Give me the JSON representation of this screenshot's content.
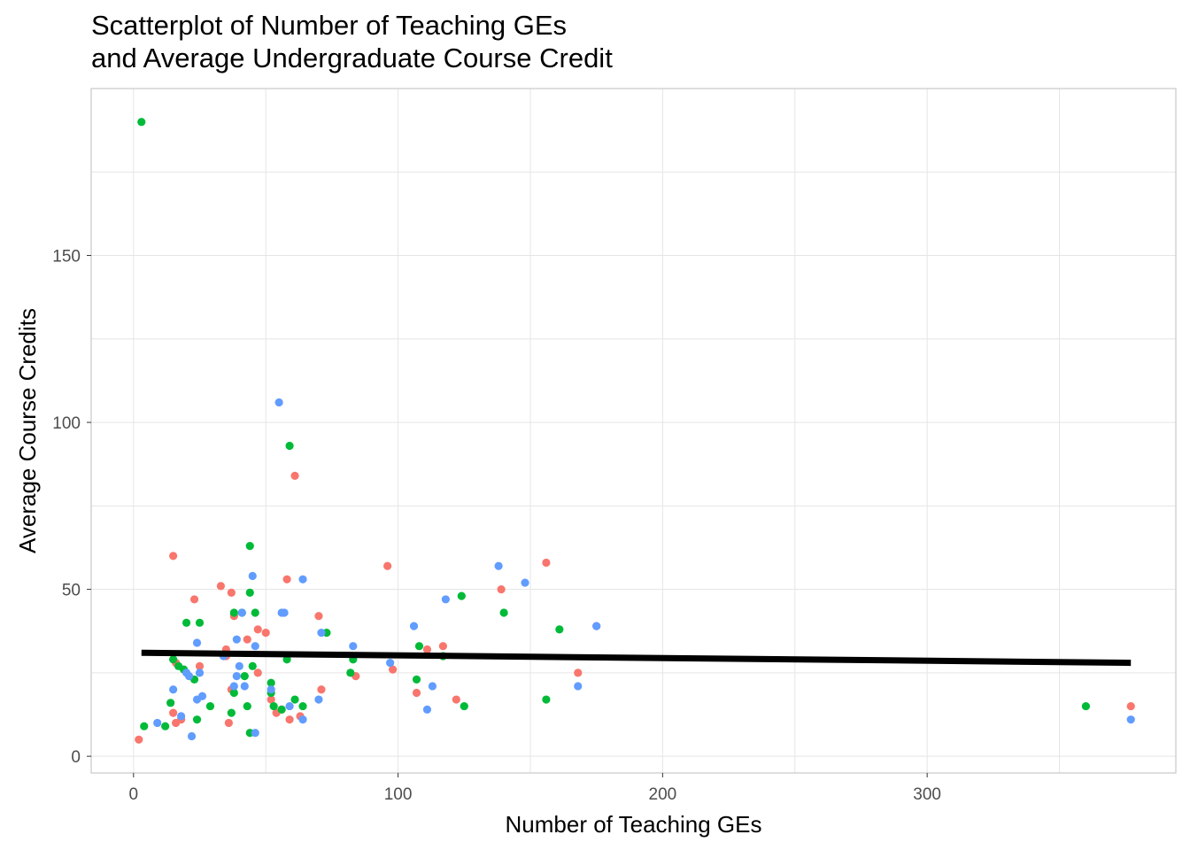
{
  "chart_data": {
    "type": "scatter",
    "title_line1": "Scatterplot of Number of Teaching GEs",
    "title_line2": "and Average Undergraduate Course Credit",
    "xlabel": "Number of Teaching GEs",
    "ylabel": "Average Course Credits",
    "xlim": [
      -16,
      394
    ],
    "ylim": [
      -5,
      200
    ],
    "x_ticks": [
      0,
      100,
      200,
      300
    ],
    "y_ticks": [
      0,
      50,
      100,
      150
    ],
    "grid": true,
    "legend": "none",
    "colors": {
      "red": "#F8766D",
      "green": "#00BA38",
      "blue": "#619CFF",
      "trend": "#000000",
      "grid": "#e5e5e5",
      "panel_border": "#c8c8c8"
    },
    "series": [
      {
        "color_key": "red",
        "points": [
          [
            2,
            5
          ],
          [
            15,
            60
          ],
          [
            15,
            13
          ],
          [
            16,
            10
          ],
          [
            16,
            28
          ],
          [
            18,
            11
          ],
          [
            23,
            47
          ],
          [
            25,
            27
          ],
          [
            33,
            51
          ],
          [
            35,
            30
          ],
          [
            35,
            32
          ],
          [
            36,
            10
          ],
          [
            37,
            20
          ],
          [
            37,
            49
          ],
          [
            38,
            42
          ],
          [
            43,
            35
          ],
          [
            47,
            38
          ],
          [
            47,
            25
          ],
          [
            50,
            37
          ],
          [
            52,
            17
          ],
          [
            54,
            13
          ],
          [
            56,
            14
          ],
          [
            58,
            53
          ],
          [
            59,
            11
          ],
          [
            61,
            84
          ],
          [
            63,
            12
          ],
          [
            70,
            42
          ],
          [
            71,
            20
          ],
          [
            84,
            24
          ],
          [
            96,
            57
          ],
          [
            98,
            26
          ],
          [
            107,
            19
          ],
          [
            111,
            32
          ],
          [
            117,
            33
          ],
          [
            122,
            17
          ],
          [
            139,
            50
          ],
          [
            156,
            58
          ],
          [
            168,
            25
          ],
          [
            175,
            39
          ],
          [
            377,
            15
          ]
        ]
      },
      {
        "color_key": "green",
        "points": [
          [
            3,
            190
          ],
          [
            4,
            9
          ],
          [
            12,
            9
          ],
          [
            14,
            16
          ],
          [
            15,
            29
          ],
          [
            17,
            27
          ],
          [
            19,
            26
          ],
          [
            20,
            40
          ],
          [
            23,
            23
          ],
          [
            24,
            11
          ],
          [
            25,
            40
          ],
          [
            29,
            15
          ],
          [
            37,
            13
          ],
          [
            38,
            43
          ],
          [
            38,
            19
          ],
          [
            41,
            43
          ],
          [
            42,
            24
          ],
          [
            43,
            15
          ],
          [
            44,
            7
          ],
          [
            44,
            63
          ],
          [
            44,
            49
          ],
          [
            45,
            27
          ],
          [
            46,
            43
          ],
          [
            52,
            22
          ],
          [
            52,
            19
          ],
          [
            53,
            15
          ],
          [
            56,
            14
          ],
          [
            58,
            29
          ],
          [
            59,
            93
          ],
          [
            61,
            17
          ],
          [
            64,
            15
          ],
          [
            73,
            37
          ],
          [
            82,
            25
          ],
          [
            83,
            29
          ],
          [
            107,
            23
          ],
          [
            108,
            33
          ],
          [
            117,
            30
          ],
          [
            124,
            48
          ],
          [
            125,
            15
          ],
          [
            140,
            43
          ],
          [
            156,
            17
          ],
          [
            161,
            38
          ],
          [
            360,
            15
          ]
        ]
      },
      {
        "color_key": "blue",
        "points": [
          [
            9,
            10
          ],
          [
            15,
            20
          ],
          [
            18,
            12
          ],
          [
            20,
            25
          ],
          [
            21,
            24
          ],
          [
            22,
            6
          ],
          [
            24,
            17
          ],
          [
            24,
            34
          ],
          [
            25,
            25
          ],
          [
            26,
            18
          ],
          [
            34,
            30
          ],
          [
            38,
            21
          ],
          [
            39,
            35
          ],
          [
            39,
            24
          ],
          [
            40,
            27
          ],
          [
            41,
            43
          ],
          [
            42,
            21
          ],
          [
            45,
            54
          ],
          [
            46,
            33
          ],
          [
            46,
            7
          ],
          [
            52,
            20
          ],
          [
            55,
            106
          ],
          [
            56,
            43
          ],
          [
            57,
            43
          ],
          [
            59,
            15
          ],
          [
            64,
            53
          ],
          [
            64,
            11
          ],
          [
            70,
            17
          ],
          [
            71,
            37
          ],
          [
            83,
            33
          ],
          [
            97,
            28
          ],
          [
            106,
            39
          ],
          [
            111,
            14
          ],
          [
            113,
            21
          ],
          [
            118,
            47
          ],
          [
            138,
            57
          ],
          [
            148,
            52
          ],
          [
            168,
            21
          ],
          [
            175,
            39
          ],
          [
            377,
            11
          ]
        ]
      }
    ],
    "trend_line": {
      "x": [
        3,
        377
      ],
      "y": [
        31,
        28
      ]
    }
  }
}
